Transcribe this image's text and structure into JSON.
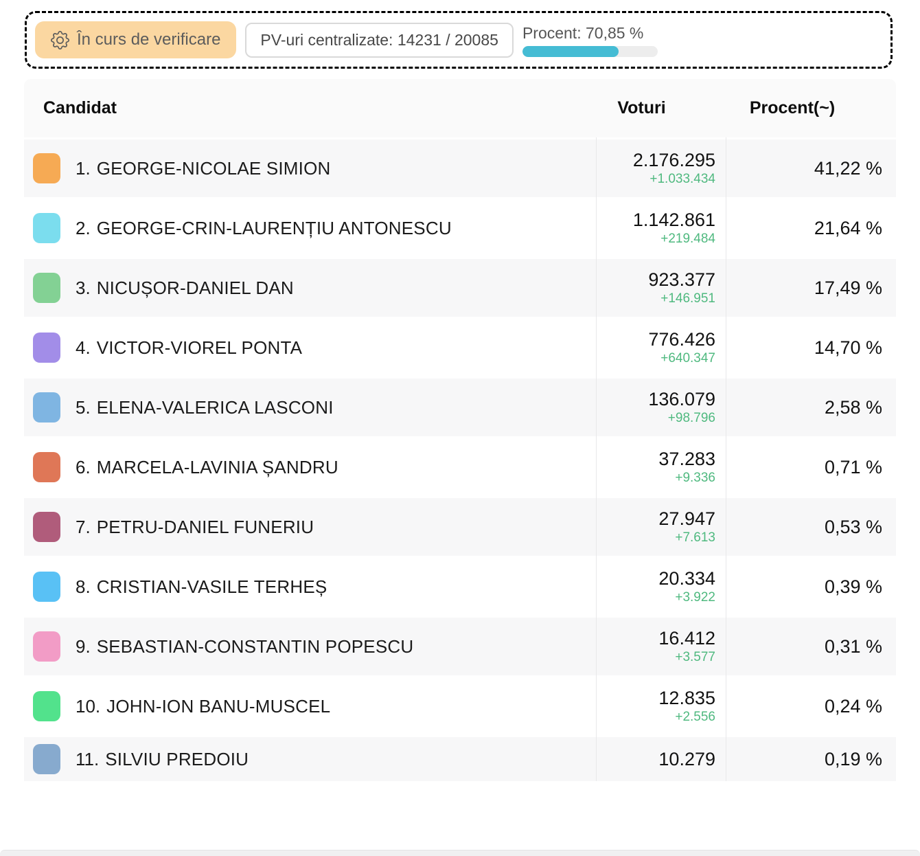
{
  "status_bar": {
    "badge_label": "În curs de verificare",
    "pv_label": "PV-uri centralizate: 14231 / 20085",
    "progress_label": "Procent: 70,85 %",
    "progress_percent": 70.85,
    "badge_bg": "#FBD7A1",
    "progress_fill_color": "#45BCD4"
  },
  "table": {
    "header_candidate": "Candidat",
    "header_votes": "Voturi",
    "header_percent": "Procent(~)",
    "delta_color": "#4FB97F",
    "rows": [
      {
        "rank": "1.",
        "name": "GEORGE-NICOLAE SIMION",
        "color": "#F6AA54",
        "votes": "2.176.295",
        "delta": "+1.033.434",
        "percent": "41,22 %"
      },
      {
        "rank": "2.",
        "name": "GEORGE-CRIN-LAURENȚIU ANTONESCU",
        "color": "#7BDDEE",
        "votes": "1.142.861",
        "delta": "+219.484",
        "percent": "21,64 %"
      },
      {
        "rank": "3.",
        "name": "NICUȘOR-DANIEL DAN",
        "color": "#83D194",
        "votes": "923.377",
        "delta": "+146.951",
        "percent": "17,49 %"
      },
      {
        "rank": "4.",
        "name": "VICTOR-VIOREL PONTA",
        "color": "#A28DE8",
        "votes": "776.426",
        "delta": "+640.347",
        "percent": "14,70 %"
      },
      {
        "rank": "5.",
        "name": "ELENA-VALERICA LASCONI",
        "color": "#7FB5E2",
        "votes": "136.079",
        "delta": "+98.796",
        "percent": "2,58 %"
      },
      {
        "rank": "6.",
        "name": "MARCELA-LAVINIA ȘANDRU",
        "color": "#DF7757",
        "votes": "37.283",
        "delta": "+9.336",
        "percent": "0,71 %"
      },
      {
        "rank": "7.",
        "name": "PETRU-DANIEL FUNERIU",
        "color": "#B05C7B",
        "votes": "27.947",
        "delta": "+7.613",
        "percent": "0,53 %"
      },
      {
        "rank": "8.",
        "name": "CRISTIAN-VASILE TERHEȘ",
        "color": "#59C1F5",
        "votes": "20.334",
        "delta": "+3.922",
        "percent": "0,39 %"
      },
      {
        "rank": "9.",
        "name": "SEBASTIAN-CONSTANTIN POPESCU",
        "color": "#F29CC6",
        "votes": "16.412",
        "delta": "+3.577",
        "percent": "0,31 %"
      },
      {
        "rank": "10.",
        "name": "JOHN-ION BANU-MUSCEL",
        "color": "#52E28C",
        "votes": "12.835",
        "delta": "+2.556",
        "percent": "0,24 %"
      },
      {
        "rank": "11.",
        "name": "SILVIU PREDOIU",
        "color": "#87AACE",
        "votes": "10.279",
        "delta": "",
        "percent": "0,19 %"
      }
    ]
  }
}
